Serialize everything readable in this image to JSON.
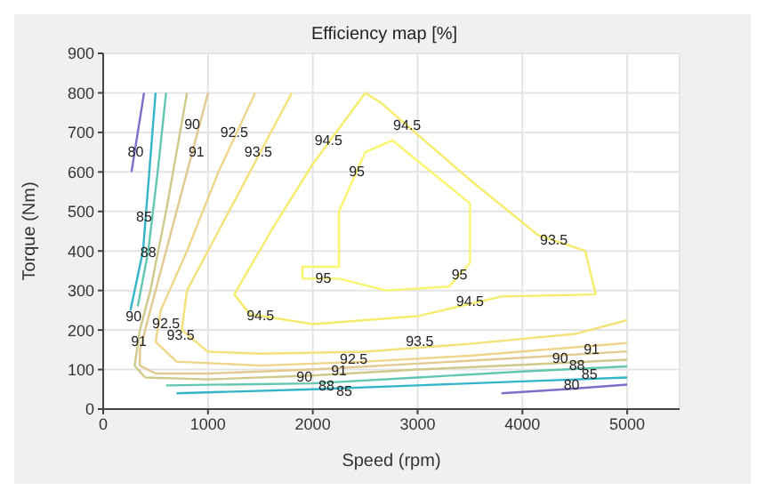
{
  "chart_data": {
    "type": "line",
    "title": "Efficiency map [%]",
    "xlabel": "Speed (rpm)",
    "ylabel": "Torque (Nm)",
    "xlim": [
      0,
      5500
    ],
    "xticks": [
      0,
      1000,
      2000,
      3000,
      4000,
      5000
    ],
    "ylim": [
      0,
      900
    ],
    "yticks": [
      0,
      100,
      200,
      300,
      400,
      500,
      600,
      700,
      800,
      900
    ],
    "grid": true,
    "marker": "none",
    "line_style": "solid",
    "series": [
      {
        "color": "#7b6fc9",
        "x": [
          390,
          330,
          270,
          null,
          3800,
          4400,
          5000
        ],
        "values": [
          800,
          700,
          600,
          null,
          40,
          50,
          62
        ]
      },
      {
        "color": "#33b5c9",
        "x": [
          500,
          440,
          380,
          300,
          260,
          null,
          700,
          2000,
          3000,
          4000,
          5000
        ],
        "values": [
          800,
          600,
          400,
          300,
          250,
          null,
          40,
          50,
          60,
          70,
          80
        ]
      },
      {
        "color": "#63c7b0",
        "x": [
          600,
          520,
          430,
          330,
          null,
          600,
          2000,
          3000,
          4000,
          5000
        ],
        "values": [
          800,
          600,
          400,
          260,
          null,
          60,
          65,
          80,
          95,
          108
        ]
      },
      {
        "color": "#cfc98a",
        "x": [
          800,
          700,
          600,
          450,
          350,
          300,
          400,
          1000,
          2000,
          3000,
          4000,
          5000
        ],
        "values": [
          800,
          650,
          500,
          300,
          200,
          110,
          80,
          75,
          85,
          100,
          112,
          125
        ]
      },
      {
        "color": "#e2c98f",
        "x": [
          1000,
          800,
          600,
          450,
          350,
          350,
          500,
          1000,
          2000,
          3000,
          4000,
          5000
        ],
        "values": [
          800,
          600,
          400,
          250,
          150,
          110,
          90,
          90,
          100,
          115,
          130,
          146
        ]
      },
      {
        "color": "#efd58a",
        "x": [
          1450,
          1100,
          800,
          550,
          500,
          700,
          1500,
          2500,
          3500,
          5000
        ],
        "values": [
          800,
          600,
          400,
          250,
          170,
          120,
          110,
          120,
          135,
          167
        ]
      },
      {
        "color": "#f3e27a",
        "x": [
          1800,
          1400,
          1100,
          800,
          750,
          1000,
          1500,
          2500,
          3500,
          4500,
          5000
        ],
        "values": [
          800,
          600,
          450,
          300,
          200,
          145,
          140,
          145,
          165,
          190,
          225
        ]
      },
      {
        "color": "#f6ec6c",
        "x": [
          1250,
          1600,
          2000,
          2500,
          2650,
          3500,
          4150,
          4600,
          4700,
          null,
          1250,
          1400,
          2000,
          3000,
          3800,
          4700
        ],
        "values": [
          290,
          450,
          620,
          800,
          775,
          580,
          440,
          400,
          290,
          null,
          290,
          240,
          215,
          235,
          285,
          290
        ]
      },
      {
        "color": "#f9f56e",
        "x": [
          1900,
          1900,
          2250,
          2250,
          2500,
          2760,
          3500,
          3500,
          null,
          1900,
          2250,
          2700,
          3300,
          3500
        ],
        "values": [
          330,
          360,
          360,
          500,
          650,
          680,
          520,
          370,
          null,
          330,
          330,
          300,
          310,
          370
        ]
      }
    ],
    "annotations": [
      {
        "text": "80",
        "x": 310,
        "y": 650
      },
      {
        "text": "85",
        "x": 390,
        "y": 485
      },
      {
        "text": "88",
        "x": 430,
        "y": 395
      },
      {
        "text": "90",
        "x": 850,
        "y": 720
      },
      {
        "text": "91",
        "x": 890,
        "y": 650
      },
      {
        "text": "92.5",
        "x": 1250,
        "y": 700
      },
      {
        "text": "93.5",
        "x": 1480,
        "y": 650
      },
      {
        "text": "94.5",
        "x": 2150,
        "y": 680
      },
      {
        "text": "95",
        "x": 2420,
        "y": 600
      },
      {
        "text": "94.5",
        "x": 2900,
        "y": 718
      },
      {
        "text": "93.5",
        "x": 4300,
        "y": 427
      },
      {
        "text": "95",
        "x": 2100,
        "y": 330
      },
      {
        "text": "95",
        "x": 3400,
        "y": 340
      },
      {
        "text": "94.5",
        "x": 3500,
        "y": 272
      },
      {
        "text": "94.5",
        "x": 1500,
        "y": 236
      },
      {
        "text": "90",
        "x": 290,
        "y": 235
      },
      {
        "text": "91",
        "x": 340,
        "y": 170
      },
      {
        "text": "92.5",
        "x": 600,
        "y": 215
      },
      {
        "text": "93.5",
        "x": 740,
        "y": 187
      },
      {
        "text": "93.5",
        "x": 3020,
        "y": 170
      },
      {
        "text": "92.5",
        "x": 2390,
        "y": 125
      },
      {
        "text": "91",
        "x": 2250,
        "y": 96
      },
      {
        "text": "90",
        "x": 1920,
        "y": 80
      },
      {
        "text": "88",
        "x": 2130,
        "y": 58
      },
      {
        "text": "85",
        "x": 2300,
        "y": 46
      },
      {
        "text": "91",
        "x": 4660,
        "y": 150
      },
      {
        "text": "90",
        "x": 4360,
        "y": 128
      },
      {
        "text": "88",
        "x": 4520,
        "y": 110
      },
      {
        "text": "85",
        "x": 4640,
        "y": 88
      },
      {
        "text": "80",
        "x": 4470,
        "y": 60
      }
    ]
  }
}
